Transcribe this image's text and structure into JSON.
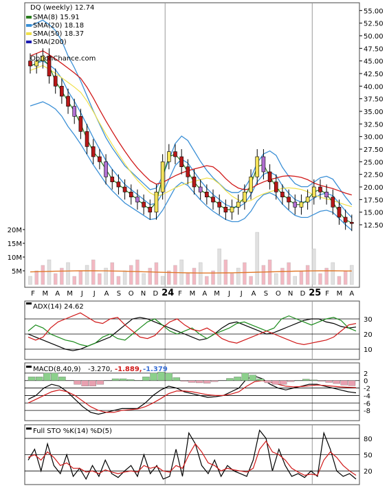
{
  "chart_data": [
    {
      "type": "candlestick",
      "title": "DQ (weekly) 12.74",
      "legend": [
        {
          "label": "SMA(8) 15.91",
          "color": "#2a7d1e"
        },
        {
          "label": "SMA(20) 18.18",
          "color": "#3a8fd6"
        },
        {
          "label": "SMA(50) 18.37",
          "color": "#f0e04a"
        },
        {
          "label": "SMA(200)",
          "color": "#1a1ab0"
        }
      ],
      "watermark": "OptionChance.com",
      "ylim": [
        11,
        56
      ],
      "yticks": [
        "55.00",
        "52.50",
        "50.00",
        "47.50",
        "45.00",
        "42.50",
        "40.00",
        "37.50",
        "35.00",
        "32.50",
        "30.00",
        "27.50",
        "25.00",
        "22.50",
        "20.00",
        "17.50",
        "15.00",
        "12.50"
      ],
      "xticks": [
        "F",
        "M",
        "A",
        "M",
        "J",
        "J",
        "A",
        "S",
        "O",
        "N",
        "D",
        "24",
        "F",
        "M",
        "A",
        "M",
        "J",
        "J",
        "A",
        "S",
        "O",
        "N",
        "D",
        "25",
        "F",
        "M",
        "A"
      ],
      "close_path": [
        44,
        45,
        46,
        42,
        40,
        38,
        36,
        34,
        31,
        28,
        26,
        25,
        22,
        21,
        20,
        19,
        18,
        17,
        16,
        15,
        19,
        25,
        27,
        26,
        24,
        22,
        20,
        19,
        18,
        17,
        16,
        15,
        16,
        17,
        19,
        22,
        26,
        23,
        21,
        19,
        18,
        17,
        16,
        17,
        18,
        20,
        19,
        18,
        16,
        14,
        13,
        12.74
      ],
      "volume_yticks": [
        "20M",
        "15M",
        "10M",
        "5M"
      ]
    },
    {
      "type": "line",
      "title": "ADX(14) 24.62",
      "ylim": [
        5,
        40
      ],
      "yticks": [
        "30",
        "20",
        "10"
      ],
      "series": [
        {
          "name": "ADX",
          "color": "#000000",
          "values": [
            20,
            18,
            16,
            14,
            12,
            10,
            9,
            10,
            12,
            14,
            16,
            18,
            22,
            26,
            30,
            31,
            30,
            28,
            26,
            24,
            22,
            20,
            18,
            16,
            17,
            20,
            24,
            27,
            28,
            26,
            24,
            22,
            20,
            21,
            23,
            25,
            27,
            29,
            30,
            30,
            28,
            27,
            25,
            24,
            24.62
          ]
        },
        {
          "name": "+DI",
          "color": "#1a8a1a",
          "values": [
            22,
            26,
            24,
            20,
            18,
            16,
            15,
            13,
            12,
            14,
            18,
            20,
            17,
            16,
            20,
            24,
            28,
            30,
            26,
            22,
            20,
            22,
            24,
            20,
            17,
            20,
            22,
            24,
            27,
            28,
            26,
            24,
            22,
            24,
            30,
            32,
            30,
            28,
            26,
            28,
            30,
            31,
            29,
            24,
            22
          ]
        },
        {
          "name": "-DI",
          "color": "#d01818",
          "values": [
            18,
            16,
            18,
            24,
            28,
            30,
            32,
            34,
            31,
            28,
            27,
            30,
            31,
            26,
            22,
            18,
            17,
            19,
            24,
            28,
            30,
            26,
            23,
            22,
            24,
            21,
            17,
            15,
            14,
            16,
            18,
            20,
            22,
            20,
            18,
            16,
            14,
            13,
            14,
            15,
            16,
            18,
            22,
            26,
            27
          ]
        }
      ]
    },
    {
      "type": "line",
      "title": "MACD(8,40,9)",
      "values_text": [
        "-3.270,",
        "-1.889,",
        "-1.379"
      ],
      "ylim": [
        -10,
        4
      ],
      "yticks": [
        "2",
        "0",
        "-2",
        "-4",
        "-6",
        "-8"
      ],
      "series": [
        {
          "name": "MACD",
          "color": "#000000",
          "values": [
            -5,
            -4,
            -2,
            -1,
            -1.5,
            -3,
            -5,
            -7,
            -8.5,
            -9,
            -8.5,
            -8,
            -7.5,
            -7.5,
            -7.5,
            -6,
            -4,
            -2.5,
            -1.5,
            -2,
            -3,
            -3.5,
            -4,
            -4.5,
            -4.3,
            -4,
            -3,
            -2,
            0.5,
            1.2,
            0.5,
            -1,
            -2,
            -2.5,
            -2,
            -1.5,
            -1,
            -1,
            -1.5,
            -2,
            -2.5,
            -3,
            -3.27
          ]
        },
        {
          "name": "Signal",
          "color": "#d01818",
          "values": [
            -6,
            -5,
            -4,
            -3,
            -2.5,
            -3,
            -4,
            -5.5,
            -7,
            -8,
            -8.5,
            -8.5,
            -8,
            -7.8,
            -7.6,
            -7,
            -6,
            -4.8,
            -3.5,
            -2.8,
            -2.8,
            -3,
            -3.4,
            -3.8,
            -4,
            -4,
            -3.6,
            -3,
            -1.5,
            -0.3,
            0,
            -0.4,
            -1,
            -1.5,
            -1.7,
            -1.6,
            -1.4,
            -1.2,
            -1.3,
            -1.5,
            -1.7,
            -1.8,
            -1.889
          ]
        },
        {
          "name": "Histogram",
          "color": "#3aa03a",
          "values": [
            1,
            1,
            2,
            2,
            1,
            0,
            -1,
            -1.5,
            -1.5,
            -1,
            0,
            0.5,
            0.5,
            0.3,
            0.1,
            1,
            2,
            2.3,
            2,
            0.8,
            -0.2,
            -0.5,
            -0.6,
            -0.7,
            -0.3,
            0,
            0.6,
            1,
            2,
            1.5,
            0.5,
            -0.6,
            -1,
            -1,
            -0.3,
            0.1,
            0.4,
            0.2,
            -0.2,
            -0.5,
            -0.8,
            -1.2,
            -1.379
          ]
        }
      ]
    },
    {
      "type": "line",
      "title": "Full STO %K(14) %D(5)",
      "ylim": [
        0,
        100
      ],
      "yticks": [
        "80",
        "50",
        "20"
      ],
      "series": [
        {
          "name": "%K",
          "color": "#000000",
          "values": [
            40,
            60,
            20,
            70,
            30,
            15,
            50,
            10,
            25,
            5,
            30,
            10,
            40,
            15,
            8,
            20,
            30,
            10,
            50,
            15,
            30,
            5,
            10,
            60,
            10,
            90,
            70,
            30,
            15,
            40,
            10,
            30,
            20,
            15,
            10,
            40,
            95,
            80,
            20,
            60,
            30,
            10,
            15,
            8,
            20,
            10,
            90,
            60,
            20,
            10,
            15,
            5
          ]
        },
        {
          "name": "%D",
          "color": "#d01818",
          "values": [
            45,
            50,
            40,
            55,
            45,
            30,
            35,
            25,
            25,
            18,
            20,
            15,
            22,
            18,
            15,
            18,
            20,
            18,
            30,
            25,
            28,
            20,
            18,
            30,
            25,
            50,
            70,
            55,
            35,
            30,
            20,
            25,
            22,
            20,
            18,
            25,
            60,
            75,
            55,
            50,
            40,
            25,
            18,
            12,
            14,
            12,
            40,
            55,
            45,
            30,
            20,
            12
          ]
        }
      ]
    }
  ]
}
